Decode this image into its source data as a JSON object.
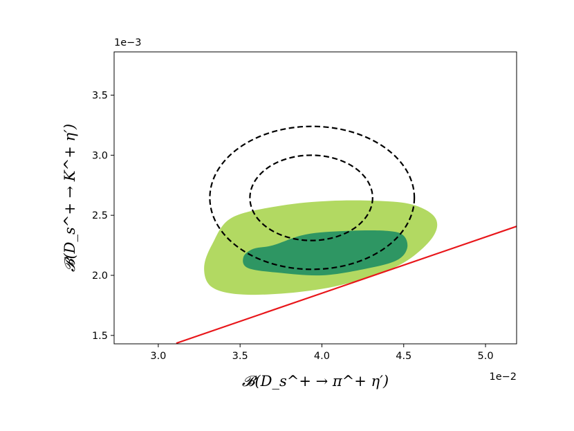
{
  "chart_data": {
    "type": "contour",
    "xlabel": "𝓑(D_s^+ → π^+ η′)",
    "ylabel": "𝓑(D_s^+ → K^+ η′)",
    "x_offset_text": "1e−2",
    "y_offset_text": "1e−3",
    "xlim": [
      0.0273,
      0.0519
    ],
    "ylim": [
      0.00143,
      0.00386
    ],
    "x_ticks": [
      0.03,
      0.035,
      0.04,
      0.045,
      0.05
    ],
    "x_tick_labels": [
      "3.0",
      "3.5",
      "4.0",
      "4.5",
      "5.0"
    ],
    "y_ticks": [
      0.0015,
      0.002,
      0.0025,
      0.003,
      0.0035
    ],
    "y_tick_labels": [
      "1.5",
      "2.0",
      "2.5",
      "3.0",
      "3.5"
    ],
    "grid": false,
    "series": [
      {
        "kind": "filled-contour",
        "color": "#b2d962",
        "points": [
          [
            0.0345,
            0.00248
          ],
          [
            0.0375,
            0.00258
          ],
          [
            0.0405,
            0.00262
          ],
          [
            0.0435,
            0.00262
          ],
          [
            0.0455,
            0.00259
          ],
          [
            0.0468,
            0.0025
          ],
          [
            0.047,
            0.00238
          ],
          [
            0.0462,
            0.00223
          ],
          [
            0.0445,
            0.00207
          ],
          [
            0.0415,
            0.00193
          ],
          [
            0.0385,
            0.00186
          ],
          [
            0.0352,
            0.00184
          ],
          [
            0.0333,
            0.0019
          ],
          [
            0.0328,
            0.00206
          ],
          [
            0.0333,
            0.00226
          ]
        ]
      },
      {
        "kind": "filled-contour",
        "color": "#2e9663",
        "points": [
          [
            0.037,
            0.00225
          ],
          [
            0.039,
            0.00234
          ],
          [
            0.0415,
            0.00237
          ],
          [
            0.044,
            0.00237
          ],
          [
            0.045,
            0.00233
          ],
          [
            0.0452,
            0.00222
          ],
          [
            0.0445,
            0.00212
          ],
          [
            0.0425,
            0.00205
          ],
          [
            0.04,
            0.002
          ],
          [
            0.0375,
            0.00202
          ],
          [
            0.0355,
            0.00206
          ],
          [
            0.0352,
            0.00215
          ],
          [
            0.0358,
            0.00222
          ]
        ]
      },
      {
        "kind": "dashed-ellipse",
        "color": "#000000",
        "center": [
          0.03935,
          0.002645
        ],
        "radii": [
          0.00375,
          0.000355
        ]
      },
      {
        "kind": "dashed-ellipse",
        "color": "#000000",
        "center": [
          0.0394,
          0.002645
        ],
        "radii": [
          0.00625,
          0.000595
        ]
      },
      {
        "kind": "line",
        "color": "#e8161a",
        "x": [
          0.0311,
          0.0519
        ],
        "y": [
          0.001435,
          0.002408
        ]
      }
    ]
  }
}
